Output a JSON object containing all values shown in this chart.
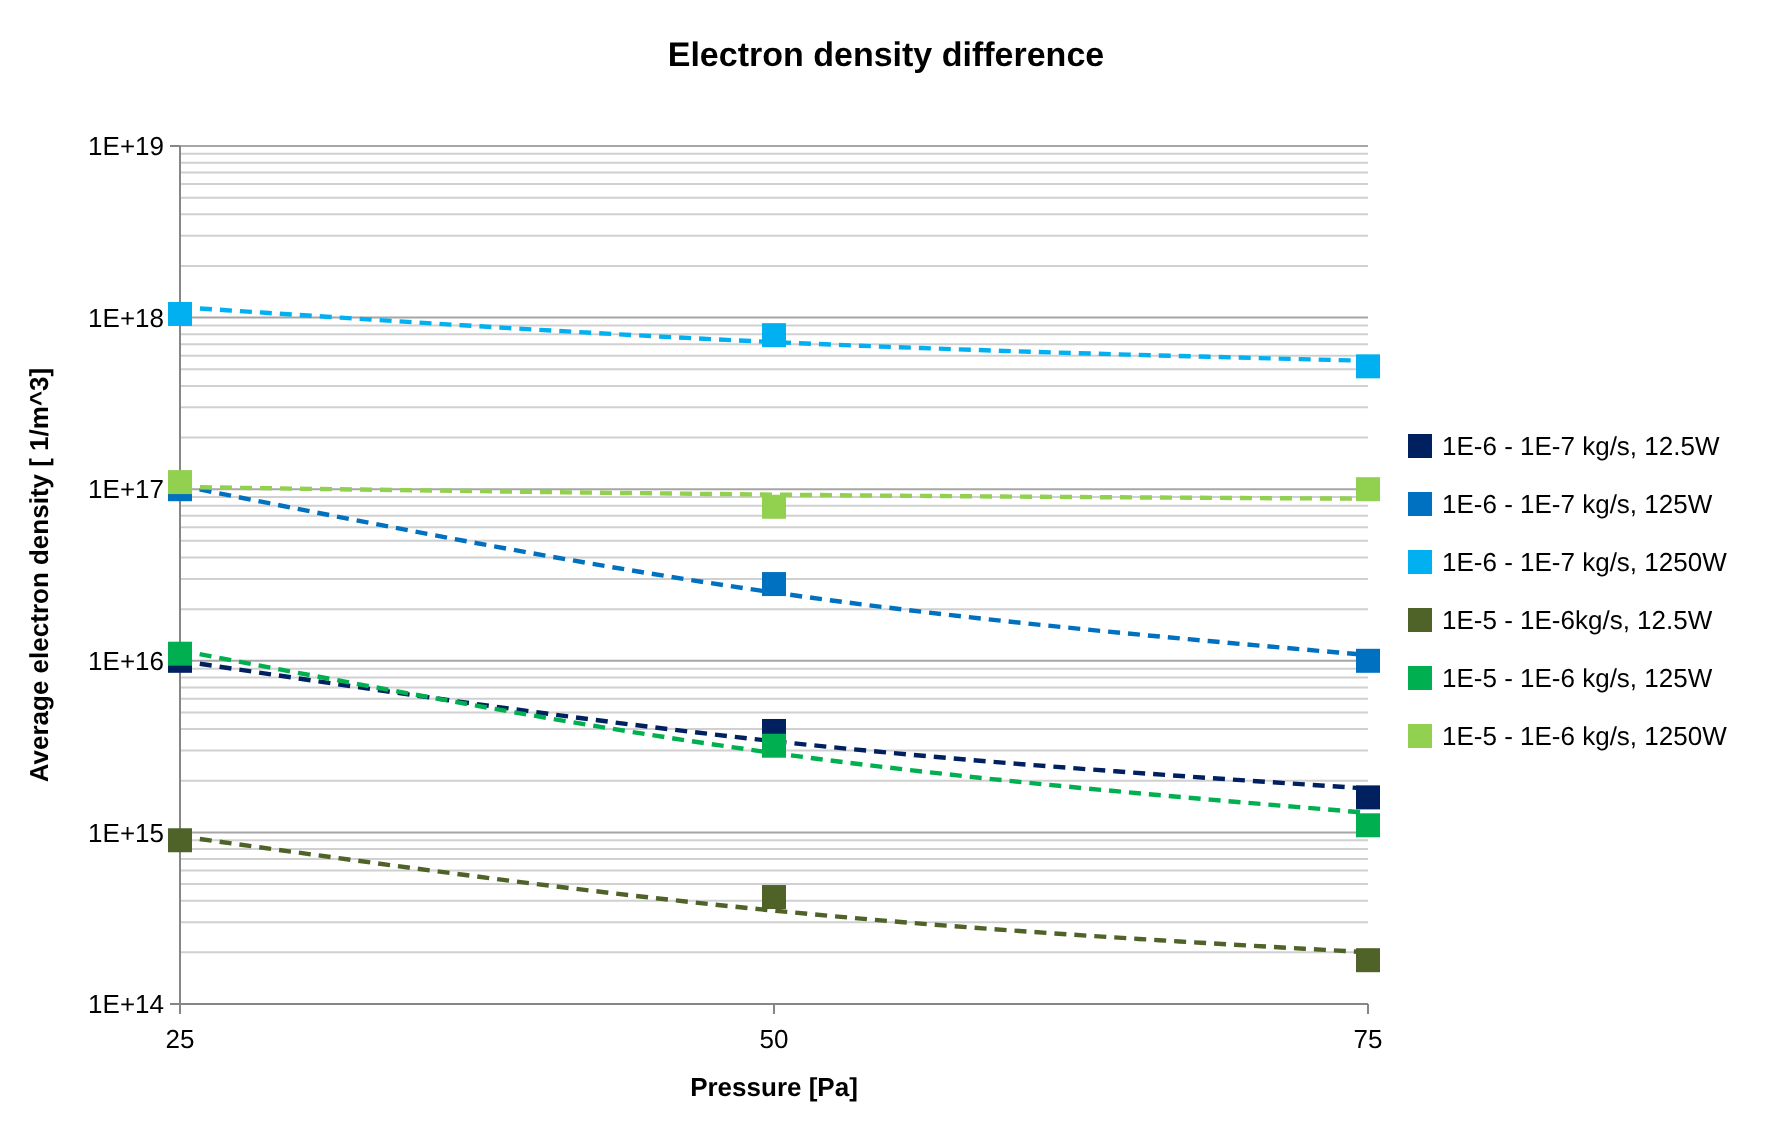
{
  "chart_data": {
    "type": "scatter",
    "title": "Electron density difference",
    "xlabel": "Pressure [Pa]",
    "ylabel": "Average electron density [ 1/m^3]",
    "log": "y",
    "grid": "y",
    "legend": "right",
    "marker": "square",
    "xlim": [
      25,
      75
    ],
    "xticks": [
      25,
      50,
      75
    ],
    "ylim": [
      100000000000000.0,
      1e+19
    ],
    "yticks": [
      {
        "value": 100000000000000.0,
        "label": "1E+14"
      },
      {
        "value": 1000000000000000.0,
        "label": "1E+15"
      },
      {
        "value": 1e+16,
        "label": "1E+16"
      },
      {
        "value": 1e+17,
        "label": "1E+17"
      },
      {
        "value": 1e+18,
        "label": "1E+18"
      },
      {
        "value": 1e+19,
        "label": "1E+19"
      }
    ],
    "series": [
      {
        "name": "1E-6 - 1E-7 kg/s, 12.5W",
        "color": "#002060",
        "x": [
          25,
          50,
          75
        ],
        "values": [
          1e+16,
          3900000000000000.0,
          1600000000000000.0
        ]
      },
      {
        "name": "1E-6 - 1E-7 kg/s, 125W",
        "color": "#0070c0",
        "x": [
          25,
          50,
          75
        ],
        "values": [
          1e+17,
          2.8e+16,
          1e+16
        ]
      },
      {
        "name": "1E-6 - 1E-7 kg/s, 1250W",
        "color": "#00b0f0",
        "x": [
          25,
          50,
          75
        ],
        "values": [
          1.05e+18,
          7.9e+17,
          5.2e+17
        ]
      },
      {
        "name": "1E-5 - 1E-6kg/s, 12.5W",
        "color": "#4f6228",
        "x": [
          25,
          50,
          75
        ],
        "values": [
          900000000000000.0,
          420000000000000.0,
          180000000000000.0
        ]
      },
      {
        "name": "1E-5 - 1E-6 kg/s, 125W",
        "color": "#00b050",
        "x": [
          25,
          50,
          75
        ],
        "values": [
          1.1e+16,
          3200000000000000.0,
          1100000000000000.0
        ]
      },
      {
        "name": "1E-5 - 1E-6 kg/s, 1250W",
        "color": "#92d050",
        "x": [
          25,
          50,
          75
        ],
        "values": [
          1.1e+17,
          7.9e+16,
          1e+17
        ]
      },
      {
        "type": "line",
        "line_style": "dashed",
        "marker": "none",
        "color": "#002060",
        "x": [
          25,
          50,
          75
        ],
        "values": [
          1e+16,
          3400000000000000.0,
          1800000000000000.0
        ]
      },
      {
        "type": "line",
        "line_style": "dashed",
        "marker": "none",
        "color": "#0070c0",
        "x": [
          25,
          50,
          75
        ],
        "values": [
          1.05e+17,
          2.5e+16,
          1.08e+16
        ]
      },
      {
        "type": "line",
        "line_style": "dashed",
        "marker": "none",
        "color": "#00b0f0",
        "x": [
          25,
          50,
          75
        ],
        "values": [
          1.15e+18,
          7.2e+17,
          5.6e+17
        ]
      },
      {
        "type": "line",
        "line_style": "dashed",
        "marker": "none",
        "color": "#4f6228",
        "x": [
          25,
          50,
          75
        ],
        "values": [
          950000000000000.0,
          350000000000000.0,
          200000000000000.0
        ]
      },
      {
        "type": "line",
        "line_style": "dashed",
        "marker": "none",
        "color": "#00b050",
        "x": [
          25,
          50,
          75
        ],
        "values": [
          1.15e+16,
          2900000000000000.0,
          1300000000000000.0
        ]
      },
      {
        "type": "line",
        "line_style": "dashed",
        "marker": "none",
        "color": "#92d050",
        "x": [
          25,
          50,
          75
        ],
        "values": [
          1.03e+17,
          9.3e+16,
          8.8e+16
        ]
      }
    ]
  }
}
